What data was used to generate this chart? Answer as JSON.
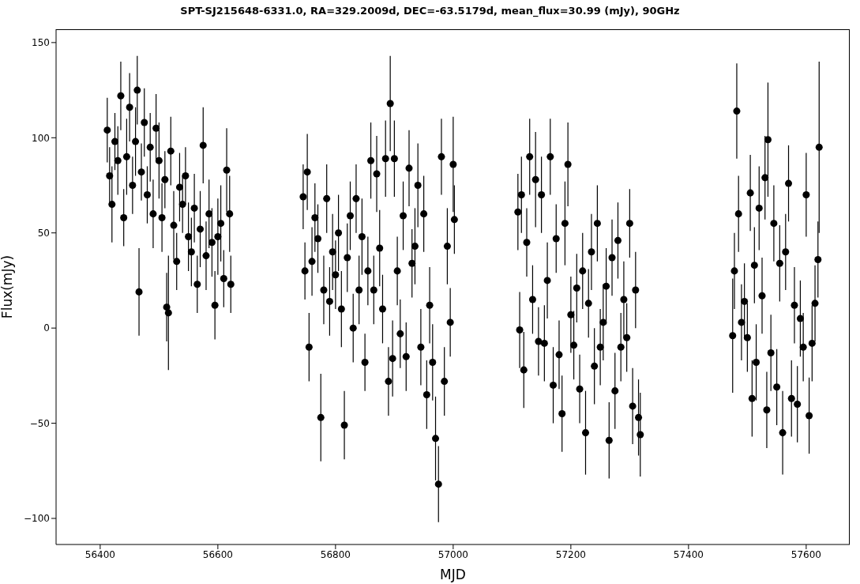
{
  "chart_data": {
    "type": "scatter",
    "title": "SPT-SJ215648-6331.0, RA=329.2009d, DEC=-63.5179d, mean_flux=30.99 (mJy), 90GHz",
    "xlabel": "MJD",
    "ylabel": "Flux(mJy)",
    "xlim": [
      56325,
      57674
    ],
    "ylim": [
      -113.7,
      157
    ],
    "xticks": [
      56400,
      56600,
      56800,
      57000,
      57200,
      57400,
      57600
    ],
    "yticks": [
      -100,
      -50,
      0,
      50,
      100,
      150
    ],
    "marker": "circle",
    "grid": false,
    "series": [
      {
        "color": "#000000",
        "x": [
          56412,
          56416,
          56420,
          56425,
          56430,
          56435,
          56440,
          56445,
          56450,
          56455,
          56460,
          56463,
          56466,
          56470,
          56475,
          56480,
          56485,
          56490,
          56495,
          56500,
          56505,
          56510,
          56513,
          56516,
          56520,
          56525,
          56530,
          56535,
          56540,
          56545,
          56550,
          56555,
          56560,
          56565,
          56570,
          56575,
          56580,
          56585,
          56590,
          56595,
          56600,
          56605,
          56610,
          56615,
          56620,
          56622,
          56745,
          56748,
          56752,
          56755,
          56760,
          56765,
          56770,
          56775,
          56780,
          56785,
          56790,
          56795,
          56800,
          56805,
          56810,
          56815,
          56820,
          56825,
          56830,
          56835,
          56840,
          56845,
          56850,
          56855,
          56860,
          56865,
          56870,
          56875,
          56880,
          56885,
          56890,
          56893,
          56897,
          56900,
          56905,
          56910,
          56915,
          56920,
          56925,
          56930,
          56935,
          56940,
          56945,
          56950,
          56955,
          56960,
          56965,
          56970,
          56975,
          56980,
          56985,
          56990,
          56995,
          57000,
          57002,
          57110,
          57113,
          57116,
          57120,
          57125,
          57130,
          57135,
          57140,
          57145,
          57150,
          57155,
          57160,
          57165,
          57170,
          57175,
          57180,
          57185,
          57190,
          57195,
          57200,
          57205,
          57210,
          57215,
          57220,
          57225,
          57230,
          57235,
          57240,
          57245,
          57250,
          57255,
          57260,
          57265,
          57270,
          57275,
          57280,
          57285,
          57290,
          57295,
          57300,
          57305,
          57310,
          57315,
          57318,
          57475,
          57478,
          57482,
          57485,
          57490,
          57495,
          57500,
          57505,
          57508,
          57512,
          57515,
          57520,
          57525,
          57530,
          57533,
          57535,
          57540,
          57545,
          57550,
          57555,
          57560,
          57565,
          57570,
          57575,
          57580,
          57585,
          57590,
          57595,
          57600,
          57605,
          57610,
          57615,
          57620,
          57622
        ],
        "values": [
          104,
          80,
          65,
          98,
          88,
          122,
          58,
          90,
          116,
          75,
          98,
          125,
          19,
          82,
          108,
          70,
          95,
          60,
          105,
          88,
          58,
          78,
          11,
          8,
          93,
          54,
          35,
          74,
          65,
          80,
          48,
          40,
          63,
          23,
          52,
          96,
          38,
          60,
          45,
          12,
          48,
          55,
          26,
          83,
          60,
          23,
          69,
          30,
          82,
          -10,
          35,
          58,
          47,
          -47,
          20,
          68,
          14,
          40,
          28,
          50,
          10,
          -51,
          37,
          59,
          0,
          68,
          20,
          48,
          -18,
          30,
          88,
          20,
          81,
          42,
          10,
          89,
          -28,
          118,
          -16,
          89,
          30,
          -3,
          59,
          -15,
          84,
          34,
          43,
          75,
          -10,
          60,
          -35,
          12,
          -18,
          -58,
          -82,
          90,
          -28,
          43,
          3,
          86,
          57,
          61,
          -1,
          70,
          -22,
          45,
          90,
          15,
          78,
          -7,
          70,
          -8,
          25,
          90,
          -30,
          47,
          -14,
          -45,
          55,
          86,
          7,
          -9,
          21,
          -32,
          30,
          -55,
          13,
          40,
          -20,
          55,
          -10,
          3,
          22,
          -59,
          37,
          -33,
          46,
          -10,
          15,
          -5,
          55,
          -41,
          20,
          -47,
          -56,
          -4,
          30,
          114,
          60,
          3,
          14,
          -5,
          71,
          -37,
          33,
          -18,
          63,
          17,
          79,
          -43,
          99,
          -13,
          55,
          -31,
          34,
          -55,
          40,
          76,
          -37,
          12,
          -40,
          5,
          -10,
          70,
          -46,
          -8,
          13,
          36,
          95
        ],
        "errors": [
          17,
          15,
          20,
          15,
          18,
          18,
          15,
          20,
          18,
          15,
          18,
          18,
          23,
          15,
          18,
          15,
          18,
          18,
          18,
          20,
          18,
          15,
          18,
          30,
          18,
          18,
          15,
          18,
          15,
          15,
          18,
          18,
          18,
          15,
          20,
          20,
          18,
          18,
          18,
          18,
          20,
          20,
          15,
          22,
          20,
          15,
          17,
          15,
          20,
          18,
          18,
          18,
          18,
          23,
          18,
          18,
          18,
          20,
          18,
          20,
          20,
          18,
          18,
          18,
          18,
          18,
          18,
          20,
          15,
          18,
          20,
          18,
          20,
          20,
          18,
          20,
          18,
          25,
          20,
          20,
          18,
          18,
          18,
          18,
          20,
          18,
          20,
          22,
          20,
          20,
          18,
          20,
          20,
          22,
          20,
          20,
          18,
          20,
          18,
          25,
          18,
          20,
          20,
          20,
          20,
          18,
          20,
          18,
          25,
          18,
          20,
          20,
          20,
          20,
          20,
          18,
          18,
          20,
          22,
          22,
          20,
          18,
          18,
          18,
          20,
          22,
          18,
          20,
          20,
          20,
          20,
          20,
          20,
          20,
          20,
          20,
          20,
          18,
          20,
          18,
          18,
          20,
          20,
          20,
          22,
          30,
          20,
          25,
          20,
          20,
          20,
          18,
          20,
          20,
          20,
          20,
          22,
          20,
          22,
          20,
          30,
          20,
          20,
          20,
          20,
          22,
          20,
          20,
          20,
          20,
          20,
          20,
          18,
          22,
          20,
          20,
          20,
          20,
          45
        ]
      }
    ]
  }
}
